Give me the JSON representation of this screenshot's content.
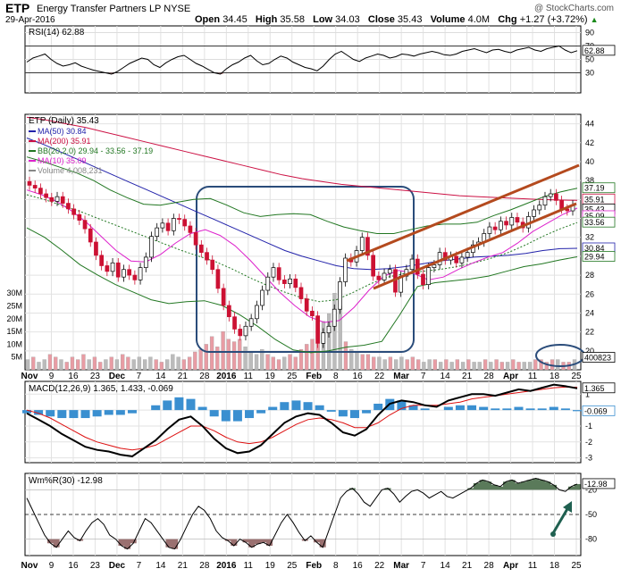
{
  "header": {
    "symbol": "ETP",
    "name": "Energy Transfer Partners LP",
    "exchange": "NYSE",
    "date": "29-Apr-2016",
    "open_label": "Open",
    "open": "34.45",
    "high_label": "High",
    "high": "35.58",
    "low_label": "Low",
    "low": "34.03",
    "close_label": "Close",
    "close": "35.43",
    "volume_label": "Volume",
    "volume": "4.0M",
    "chg_label": "Chg",
    "chg": "+1.27 (+3.72%)",
    "chg_arrow": "▲",
    "watermark": "@ StockCharts.com"
  },
  "colors": {
    "up": "#ffffff",
    "down": "#cc1133",
    "ma50": "#2222aa",
    "ma200": "#cc1144",
    "bb": "#227722",
    "ma10": "#dd22cc",
    "vol_up": "#bbbbbb",
    "vol_down": "#e89ca4",
    "macd_hist": "#3a8fd0",
    "channel": "#b44a1e",
    "callout": "#2a4c7a",
    "arrow": "#1f6050"
  },
  "chart_data": [
    {
      "panel": "rsi",
      "type": "line",
      "label": "RSI(14) 62.88",
      "last_value": "62.88",
      "ylim": [
        0,
        100
      ],
      "ticks": [
        90,
        70,
        50,
        30
      ],
      "levels": [
        70,
        30
      ],
      "values": [
        46,
        52,
        55,
        58,
        50,
        44,
        40,
        42,
        45,
        40,
        37,
        34,
        32,
        30,
        28,
        32,
        38,
        44,
        48,
        52,
        50,
        42,
        38,
        45,
        50,
        54,
        56,
        50,
        44,
        40,
        35,
        30,
        28,
        36,
        42,
        46,
        52,
        56,
        48,
        42,
        44,
        50,
        55,
        52,
        46,
        42,
        38,
        36,
        33,
        40,
        50,
        58,
        62,
        56,
        50,
        47,
        52,
        55,
        58,
        56,
        52,
        54,
        58,
        57,
        55,
        58,
        60,
        62,
        60,
        57,
        56,
        58,
        62,
        64,
        66,
        63,
        60,
        64,
        65,
        62,
        60,
        64,
        66,
        68,
        64,
        62,
        66,
        68,
        70,
        64,
        60,
        62.88
      ]
    },
    {
      "panel": "price",
      "type": "candlestick",
      "title": "ETP (Daily) 35.43",
      "ylim": [
        18,
        45
      ],
      "ticks": [
        44,
        42,
        40,
        38,
        36,
        34,
        32,
        30,
        28,
        26,
        24,
        22,
        20
      ],
      "legend": [
        {
          "label": "MA(50) 30.84",
          "color": "#2222aa"
        },
        {
          "label": "MA(200) 35.91",
          "color": "#cc1144"
        },
        {
          "label": "BB(20,2.0) 29.94 - 33.56 - 37.19",
          "color": "#227722"
        },
        {
          "label": "MA(10) 35.09",
          "color": "#dd22cc"
        },
        {
          "label": "Volume 4,008,231",
          "color": "#888888"
        }
      ],
      "price_tags": [
        "37.19",
        "35.91",
        "35.43",
        "35.09",
        "33.56",
        "30.84",
        "29.94"
      ],
      "close": [
        37.5,
        37.2,
        36.6,
        36.2,
        35.8,
        36.3,
        35.6,
        35.0,
        34.4,
        33.8,
        32.9,
        31.5,
        30.1,
        29.0,
        28.4,
        29.3,
        27.8,
        28.6,
        28.0,
        27.5,
        28.8,
        29.9,
        32.1,
        33.0,
        33.5,
        32.7,
        34.0,
        33.9,
        33.2,
        32.5,
        31.2,
        30.4,
        29.6,
        28.6,
        26.6,
        24.8,
        23.6,
        22.3,
        21.6,
        22.6,
        23.4,
        24.8,
        26.4,
        27.8,
        28.8,
        27.5,
        27.1,
        27.6,
        26.7,
        25.5,
        24.2,
        23.7,
        20.8,
        21.9,
        22.6,
        24.4,
        27.3,
        29.8,
        29.4,
        30.6,
        32.0,
        30.1,
        27.9,
        27.5,
        28.2,
        28.6,
        26.2,
        27.9,
        28.6,
        29.7,
        28.1,
        27.0,
        28.8,
        29.1,
        30.4,
        29.6,
        30.0,
        29.3,
        29.9,
        30.4,
        31.2,
        31.5,
        32.4,
        33.1,
        32.8,
        33.7,
        33.3,
        34.1,
        33.6,
        33.0,
        34.2,
        34.9,
        35.4,
        36.3,
        36.6,
        35.9,
        35.0,
        34.8,
        35.43
      ],
      "series": [
        {
          "name": "MA(50)",
          "values": [
            42.5,
            41.8,
            41.0,
            40.2,
            39.4,
            38.6,
            37.8,
            37.0,
            36.2,
            35.4,
            34.6,
            33.8,
            33.0,
            32.2,
            31.4,
            30.6,
            30.0,
            29.5,
            29.0,
            28.7,
            28.6,
            28.7,
            28.9,
            29.2,
            29.5,
            29.7,
            29.9,
            30.0,
            30.1,
            30.3,
            30.6,
            30.8,
            30.84
          ]
        },
        {
          "name": "MA(200)",
          "values": [
            44.7,
            44.4,
            44.0,
            43.6,
            43.1,
            42.6,
            42.1,
            41.6,
            41.1,
            40.6,
            40.1,
            39.6,
            39.1,
            38.6,
            38.2,
            37.9,
            37.6,
            37.4,
            37.2,
            37.0,
            36.8,
            36.6,
            36.4,
            36.3,
            36.2,
            36.1,
            36.0,
            35.95,
            35.91
          ]
        },
        {
          "name": "BB upper",
          "values": [
            40.5,
            40.0,
            39.4,
            38.8,
            38.0,
            37.0,
            36.2,
            35.5,
            35.4,
            35.7,
            36.0,
            36.1,
            35.4,
            34.6,
            34.2,
            34.4,
            34.5,
            34.4,
            33.7,
            33.1,
            32.7,
            32.4,
            32.4,
            32.8,
            33.2,
            33.4,
            33.4,
            33.6,
            34.3,
            34.9,
            35.6,
            36.3,
            36.8,
            37.19
          ]
        },
        {
          "name": "BB lower",
          "values": [
            33.0,
            32.0,
            30.6,
            29.1,
            28.0,
            27.0,
            26.2,
            25.4,
            25.0,
            25.2,
            25.3,
            24.8,
            23.8,
            22.6,
            21.2,
            20.1,
            19.8,
            20.0,
            20.4,
            20.6,
            21.0,
            23.8,
            26.8,
            27.2,
            27.4,
            27.6,
            27.9,
            28.4,
            28.9,
            29.2,
            29.6,
            29.94
          ]
        },
        {
          "name": "BB mid",
          "values": [
            36.5,
            36.0,
            35.4,
            34.8,
            34.1,
            33.4,
            32.7,
            32.0,
            31.3,
            30.6,
            30.0,
            29.4,
            28.6,
            27.7,
            26.9,
            26.2,
            25.6,
            25.2,
            25.4,
            26.2,
            27.1,
            27.8,
            28.2,
            28.4,
            28.6,
            28.9,
            29.3,
            29.8,
            30.4,
            31.2,
            32.1,
            32.9,
            33.56
          ]
        },
        {
          "name": "MA(10)",
          "values": [
            37.0,
            36.5,
            35.8,
            34.8,
            33.6,
            32.1,
            30.6,
            29.5,
            29.4,
            30.2,
            31.4,
            32.4,
            32.8,
            32.2,
            31.1,
            29.6,
            27.9,
            26.2,
            24.8,
            23.6,
            23.0,
            23.2,
            24.6,
            26.4,
            27.9,
            28.5,
            28.2,
            27.5,
            27.8,
            28.6,
            29.3,
            29.9,
            30.4,
            31.4,
            32.6,
            33.5,
            34.4,
            35.09
          ]
        }
      ]
    },
    {
      "panel": "volume",
      "type": "bar",
      "label": "Volume 4,008,231",
      "last_value": "4008231",
      "ylim": [
        0,
        35
      ],
      "unit": "M",
      "ticks": [
        "30M",
        "25M",
        "20M",
        "15M",
        "10M",
        "5M"
      ],
      "values": [
        4,
        5,
        3,
        4,
        6,
        5,
        4,
        3,
        5,
        4,
        6,
        4,
        5,
        3,
        4,
        5,
        4,
        6,
        5,
        4,
        5,
        4,
        5,
        4,
        3,
        4,
        6,
        5,
        4,
        5,
        7,
        8,
        10,
        13,
        9,
        15,
        12,
        11,
        12,
        9,
        7,
        6,
        8,
        6,
        5,
        4,
        5,
        6,
        5,
        8,
        10,
        12,
        16,
        19,
        22,
        30,
        25,
        11,
        8,
        7,
        6,
        6,
        5,
        5,
        4,
        5,
        4,
        5,
        4,
        5,
        4,
        3,
        4,
        4,
        3,
        4,
        3,
        4,
        3,
        4,
        3,
        3,
        4,
        3,
        4,
        3,
        3,
        4,
        3,
        3,
        3,
        4,
        4,
        3,
        4,
        4,
        3,
        3,
        4
      ],
      "down": [
        0,
        1,
        0,
        0,
        1,
        1,
        0,
        1,
        1,
        1,
        1,
        0,
        1,
        1,
        0,
        1,
        0,
        1,
        1,
        0,
        0,
        0,
        0,
        1,
        1,
        0,
        0,
        0,
        1,
        1,
        1,
        1,
        1,
        1,
        1,
        1,
        1,
        1,
        1,
        0,
        0,
        0,
        0,
        1,
        1,
        1,
        0,
        1,
        1,
        1,
        1,
        1,
        1,
        0,
        0,
        0,
        0,
        1,
        0,
        0,
        1,
        1,
        1,
        0,
        0,
        1,
        0,
        0,
        1,
        1,
        1,
        0,
        0,
        1,
        0,
        1,
        0,
        1,
        0,
        1,
        0,
        0,
        1,
        0,
        1,
        1,
        0,
        1,
        1,
        0,
        0,
        1,
        1,
        1,
        1,
        0,
        1,
        1,
        0
      ]
    },
    {
      "panel": "macd",
      "type": "line",
      "label": "MACD(12,26,9) 1.365, 1.433, -0.069",
      "macd_value": "1.365",
      "signal_value": "1.433",
      "hist_value": "-0.069",
      "ylim": [
        -3.3,
        1.8
      ],
      "ticks": [
        1,
        0,
        -1,
        -2,
        -3
      ],
      "series": [
        {
          "name": "MACD(12,26,9)",
          "values": [
            -0.2,
            -0.6,
            -1.0,
            -1.5,
            -1.9,
            -2.3,
            -2.5,
            -2.6,
            -2.8,
            -2.9,
            -2.4,
            -1.9,
            -1.2,
            -0.6,
            -0.4,
            -1.0,
            -1.8,
            -2.4,
            -2.7,
            -2.6,
            -2.2,
            -1.5,
            -0.8,
            -0.4,
            -0.2,
            -0.3,
            -0.8,
            -1.4,
            -1.6,
            -1.2,
            -0.3,
            0.4,
            0.6,
            0.5,
            0.3,
            0.2,
            0.6,
            0.8,
            1.0,
            1.0,
            0.9,
            1.1,
            1.3,
            1.2,
            1.4,
            1.6,
            1.5,
            1.365
          ]
        },
        {
          "name": "signal",
          "values": [
            0.0,
            -0.2,
            -0.5,
            -0.9,
            -1.3,
            -1.7,
            -2.0,
            -2.2,
            -2.4,
            -2.5,
            -2.4,
            -2.2,
            -1.8,
            -1.4,
            -1.0,
            -1.0,
            -1.3,
            -1.7,
            -2.0,
            -2.1,
            -2.0,
            -1.7,
            -1.3,
            -0.9,
            -0.6,
            -0.5,
            -0.6,
            -0.8,
            -1.1,
            -1.1,
            -0.8,
            -0.3,
            0.1,
            0.3,
            0.3,
            0.3,
            0.4,
            0.5,
            0.7,
            0.8,
            0.9,
            1.0,
            1.1,
            1.2,
            1.3,
            1.4,
            1.44,
            1.433
          ]
        }
      ],
      "histogram": [
        -0.2,
        -0.3,
        -0.4,
        -0.5,
        -0.5,
        -0.5,
        -0.4,
        -0.3,
        -0.3,
        -0.2,
        0.0,
        0.3,
        0.6,
        0.8,
        0.7,
        0.2,
        -0.4,
        -0.7,
        -0.7,
        -0.5,
        -0.2,
        0.2,
        0.5,
        0.6,
        0.5,
        0.3,
        -0.1,
        -0.4,
        -0.5,
        -0.2,
        0.4,
        0.7,
        0.6,
        0.3,
        0.1,
        0.0,
        0.2,
        0.3,
        0.3,
        0.2,
        0.1,
        0.1,
        0.2,
        0.1,
        0.1,
        0.2,
        0.1,
        -0.069
      ]
    },
    {
      "panel": "williams",
      "type": "area",
      "label": "Wm%R(30) -12.98",
      "last_value": "-12.98",
      "ylim": [
        -100,
        0
      ],
      "ticks": [
        -20,
        -50,
        -80
      ],
      "levels": [
        -20,
        -80
      ],
      "values": [
        -30,
        -45,
        -60,
        -75,
        -85,
        -90,
        -80,
        -70,
        -78,
        -82,
        -70,
        -60,
        -55,
        -62,
        -75,
        -80,
        -88,
        -92,
        -85,
        -70,
        -55,
        -60,
        -70,
        -80,
        -90,
        -92,
        -80,
        -65,
        -50,
        -40,
        -45,
        -55,
        -70,
        -78,
        -82,
        -88,
        -80,
        -84,
        -90,
        -86,
        -84,
        -88,
        -74,
        -60,
        -50,
        -60,
        -72,
        -82,
        -76,
        -84,
        -90,
        -70,
        -50,
        -30,
        -22,
        -18,
        -25,
        -35,
        -40,
        -30,
        -20,
        -18,
        -25,
        -35,
        -28,
        -22,
        -20,
        -24,
        -30,
        -26,
        -22,
        -28,
        -30,
        -26,
        -22,
        -18,
        -12,
        -8,
        -10,
        -14,
        -16,
        -10,
        -8,
        -12,
        -10,
        -8,
        -6,
        -8,
        -10,
        -14,
        -20,
        -22,
        -16,
        -12.98
      ]
    }
  ],
  "x_axis_labels": [
    "Nov",
    "9",
    "16",
    "23",
    "Dec",
    "7",
    "14",
    "21",
    "28",
    "2016",
    "11",
    "19",
    "25",
    "Feb",
    "8",
    "16",
    "22",
    "Mar",
    "7",
    "14",
    "21",
    "28",
    "Apr",
    "11",
    "18",
    "25"
  ]
}
